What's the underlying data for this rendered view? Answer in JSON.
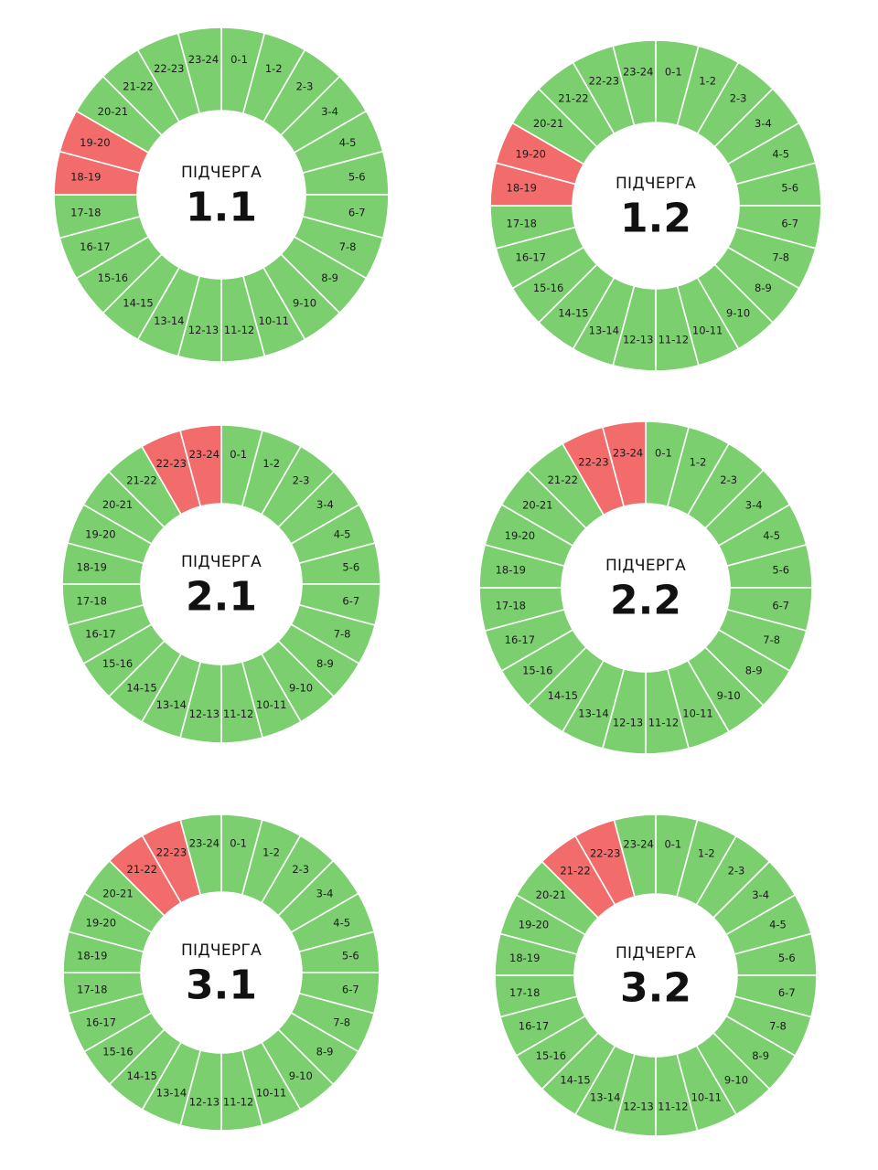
{
  "caption": "ПІДЧЕРГА",
  "colors": {
    "on": "#7bcf6e",
    "off": "#f26c6c",
    "divider": "#ffffff",
    "text": "#1a1a1a"
  },
  "chart_data": [
    {
      "type": "pie",
      "title": "1.1",
      "categories": [
        "0-1",
        "1-2",
        "2-3",
        "3-4",
        "4-5",
        "5-6",
        "6-7",
        "7-8",
        "8-9",
        "9-10",
        "10-11",
        "11-12",
        "12-13",
        "13-14",
        "14-15",
        "15-16",
        "16-17",
        "17-18",
        "18-19",
        "19-20",
        "20-21",
        "21-22",
        "22-23",
        "23-24"
      ],
      "off_hours": [
        "18-19",
        "19-20"
      ]
    },
    {
      "type": "pie",
      "title": "1.2",
      "categories": [
        "0-1",
        "1-2",
        "2-3",
        "3-4",
        "4-5",
        "5-6",
        "6-7",
        "7-8",
        "8-9",
        "9-10",
        "10-11",
        "11-12",
        "12-13",
        "13-14",
        "14-15",
        "15-16",
        "16-17",
        "17-18",
        "18-19",
        "19-20",
        "20-21",
        "21-22",
        "22-23",
        "23-24"
      ],
      "off_hours": [
        "18-19",
        "19-20"
      ]
    },
    {
      "type": "pie",
      "title": "2.1",
      "categories": [
        "0-1",
        "1-2",
        "2-3",
        "3-4",
        "4-5",
        "5-6",
        "6-7",
        "7-8",
        "8-9",
        "9-10",
        "10-11",
        "11-12",
        "12-13",
        "13-14",
        "14-15",
        "15-16",
        "16-17",
        "17-18",
        "18-19",
        "19-20",
        "20-21",
        "21-22",
        "22-23",
        "23-24"
      ],
      "off_hours": [
        "22-23",
        "23-24"
      ]
    },
    {
      "type": "pie",
      "title": "2.2",
      "categories": [
        "0-1",
        "1-2",
        "2-3",
        "3-4",
        "4-5",
        "5-6",
        "6-7",
        "7-8",
        "8-9",
        "9-10",
        "10-11",
        "11-12",
        "12-13",
        "13-14",
        "14-15",
        "15-16",
        "16-17",
        "17-18",
        "18-19",
        "19-20",
        "20-21",
        "21-22",
        "22-23",
        "23-24"
      ],
      "off_hours": [
        "22-23",
        "23-24"
      ]
    },
    {
      "type": "pie",
      "title": "3.1",
      "categories": [
        "0-1",
        "1-2",
        "2-3",
        "3-4",
        "4-5",
        "5-6",
        "6-7",
        "7-8",
        "8-9",
        "9-10",
        "10-11",
        "11-12",
        "12-13",
        "13-14",
        "14-15",
        "15-16",
        "16-17",
        "17-18",
        "18-19",
        "19-20",
        "20-21",
        "21-22",
        "22-23",
        "23-24"
      ],
      "off_hours": [
        "21-22",
        "22-23"
      ]
    },
    {
      "type": "pie",
      "title": "3.2",
      "categories": [
        "0-1",
        "1-2",
        "2-3",
        "3-4",
        "4-5",
        "5-6",
        "6-7",
        "7-8",
        "8-9",
        "9-10",
        "10-11",
        "11-12",
        "12-13",
        "13-14",
        "14-15",
        "15-16",
        "16-17",
        "17-18",
        "18-19",
        "19-20",
        "20-21",
        "21-22",
        "22-23",
        "23-24"
      ],
      "off_hours": [
        "21-22",
        "22-23"
      ]
    }
  ]
}
